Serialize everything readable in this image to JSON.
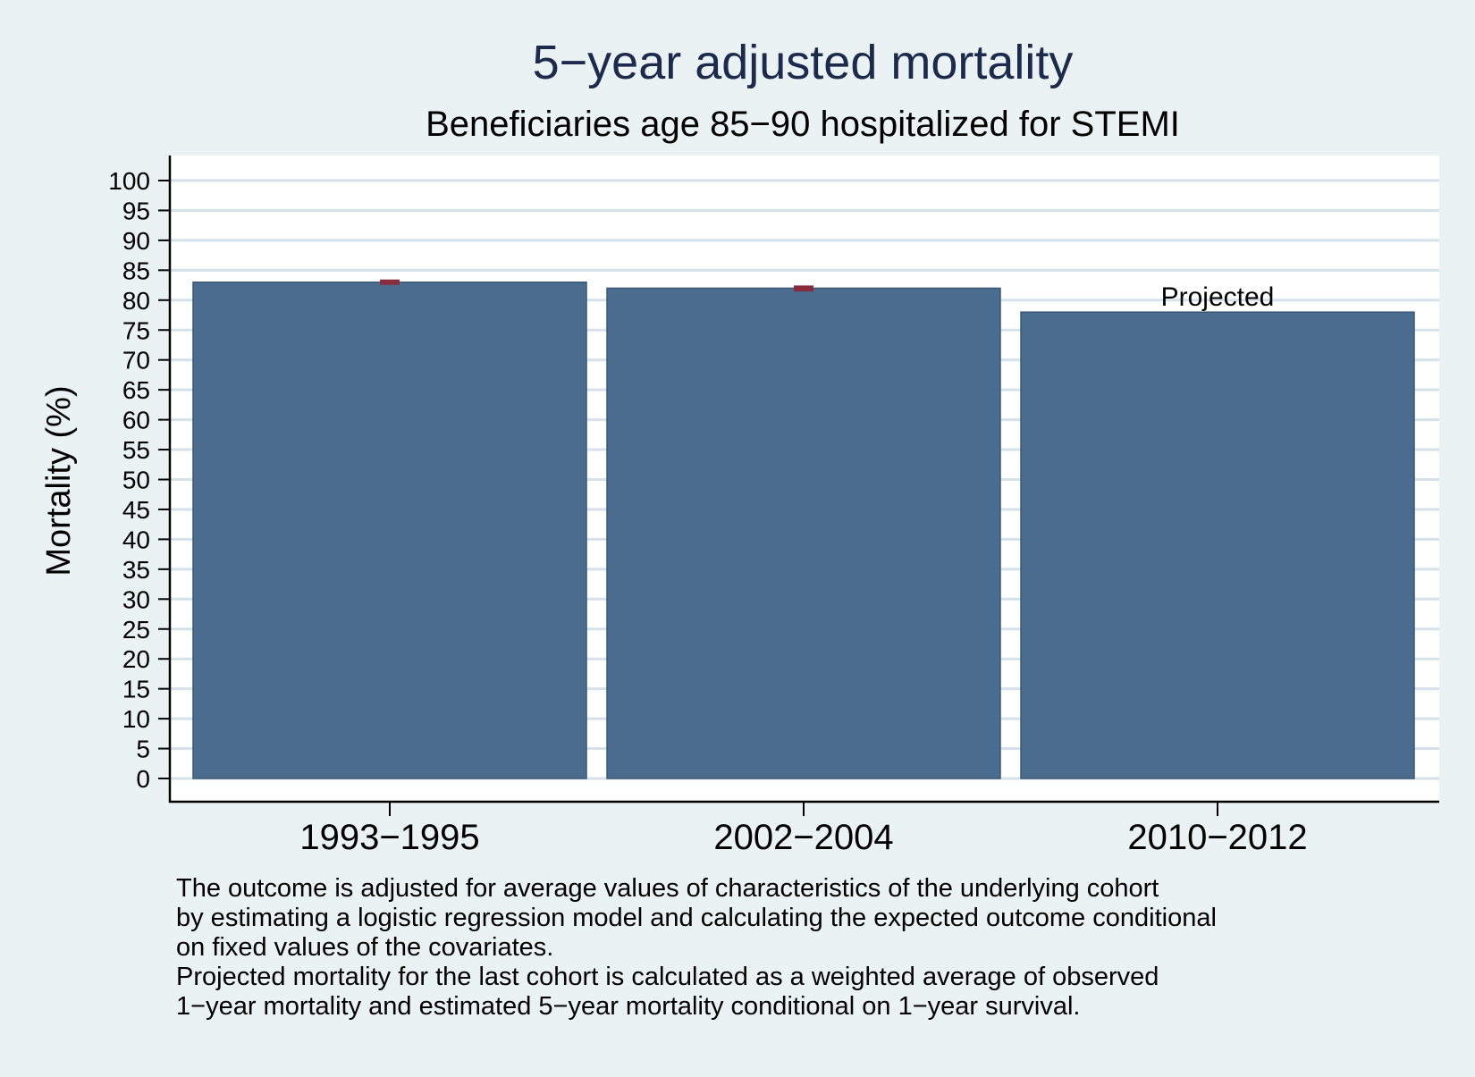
{
  "chart_data": {
    "type": "bar",
    "title": "5−year adjusted mortality",
    "subtitle": "Beneficiaries age 85−90 hospitalized for STEMI",
    "xlabel": "",
    "ylabel": "Mortality (%)",
    "ylim": [
      0,
      100
    ],
    "yticks": [
      0,
      5,
      10,
      15,
      20,
      25,
      30,
      35,
      40,
      45,
      50,
      55,
      60,
      65,
      70,
      75,
      80,
      85,
      90,
      95,
      100
    ],
    "categories": [
      "1993−1995",
      "2002−2004",
      "2010−2012"
    ],
    "values": [
      83,
      82,
      78
    ],
    "error_bars": [
      {
        "category": "1993−1995",
        "low": 82.7,
        "high": 83.3
      },
      {
        "category": "2002−2004",
        "low": 81.6,
        "high": 82.3
      },
      null
    ],
    "annotations": [
      {
        "category": "2010−2012",
        "text": "Projected"
      }
    ],
    "grid": true,
    "legend": "none",
    "colors": {
      "bar": "#4a6c8e",
      "bar_edge": "#3b5875",
      "error_bar": "#8b2c3c",
      "grid": "#d6e2ea",
      "title": "#1c2a4d",
      "plot_bg": "#ffffff",
      "page_bg": "#eaf2f3"
    }
  },
  "footnote": {
    "lines": [
      "The outcome is adjusted for average values of characteristics of the underlying cohort",
      "by estimating a logistic regression model and calculating the expected outcome conditional",
      "on fixed values of the covariates.",
      "Projected mortality for the last cohort is calculated as a weighted average of observed",
      "1−year mortality and estimated 5−year mortality conditional on 1−year survival."
    ]
  }
}
